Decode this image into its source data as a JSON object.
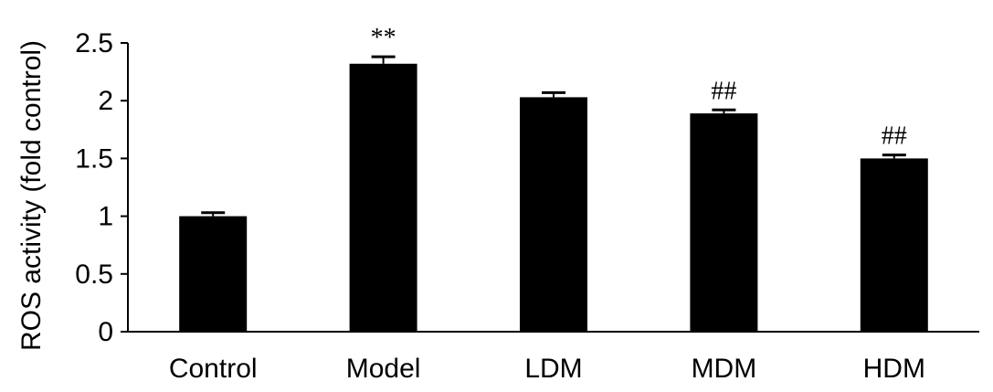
{
  "chart_data": {
    "type": "bar",
    "title": "",
    "xlabel": "",
    "ylabel": "ROS activity (fold control)",
    "ylim": [
      0,
      2.5
    ],
    "yticks": [
      0,
      0.5,
      1,
      1.5,
      2,
      2.5
    ],
    "ytick_labels": [
      "0",
      "0.5",
      "1",
      "1.5",
      "2",
      "2.5"
    ],
    "categories": [
      "Control",
      "Model",
      "LDM",
      "MDM",
      "HDM"
    ],
    "values": [
      1.0,
      2.32,
      2.03,
      1.89,
      1.5
    ],
    "errors": [
      0.03,
      0.06,
      0.04,
      0.03,
      0.03
    ],
    "annotations": [
      "",
      "**",
      "",
      "##",
      "##"
    ],
    "grid": false,
    "legend": "none",
    "bar_color": "#000000"
  }
}
